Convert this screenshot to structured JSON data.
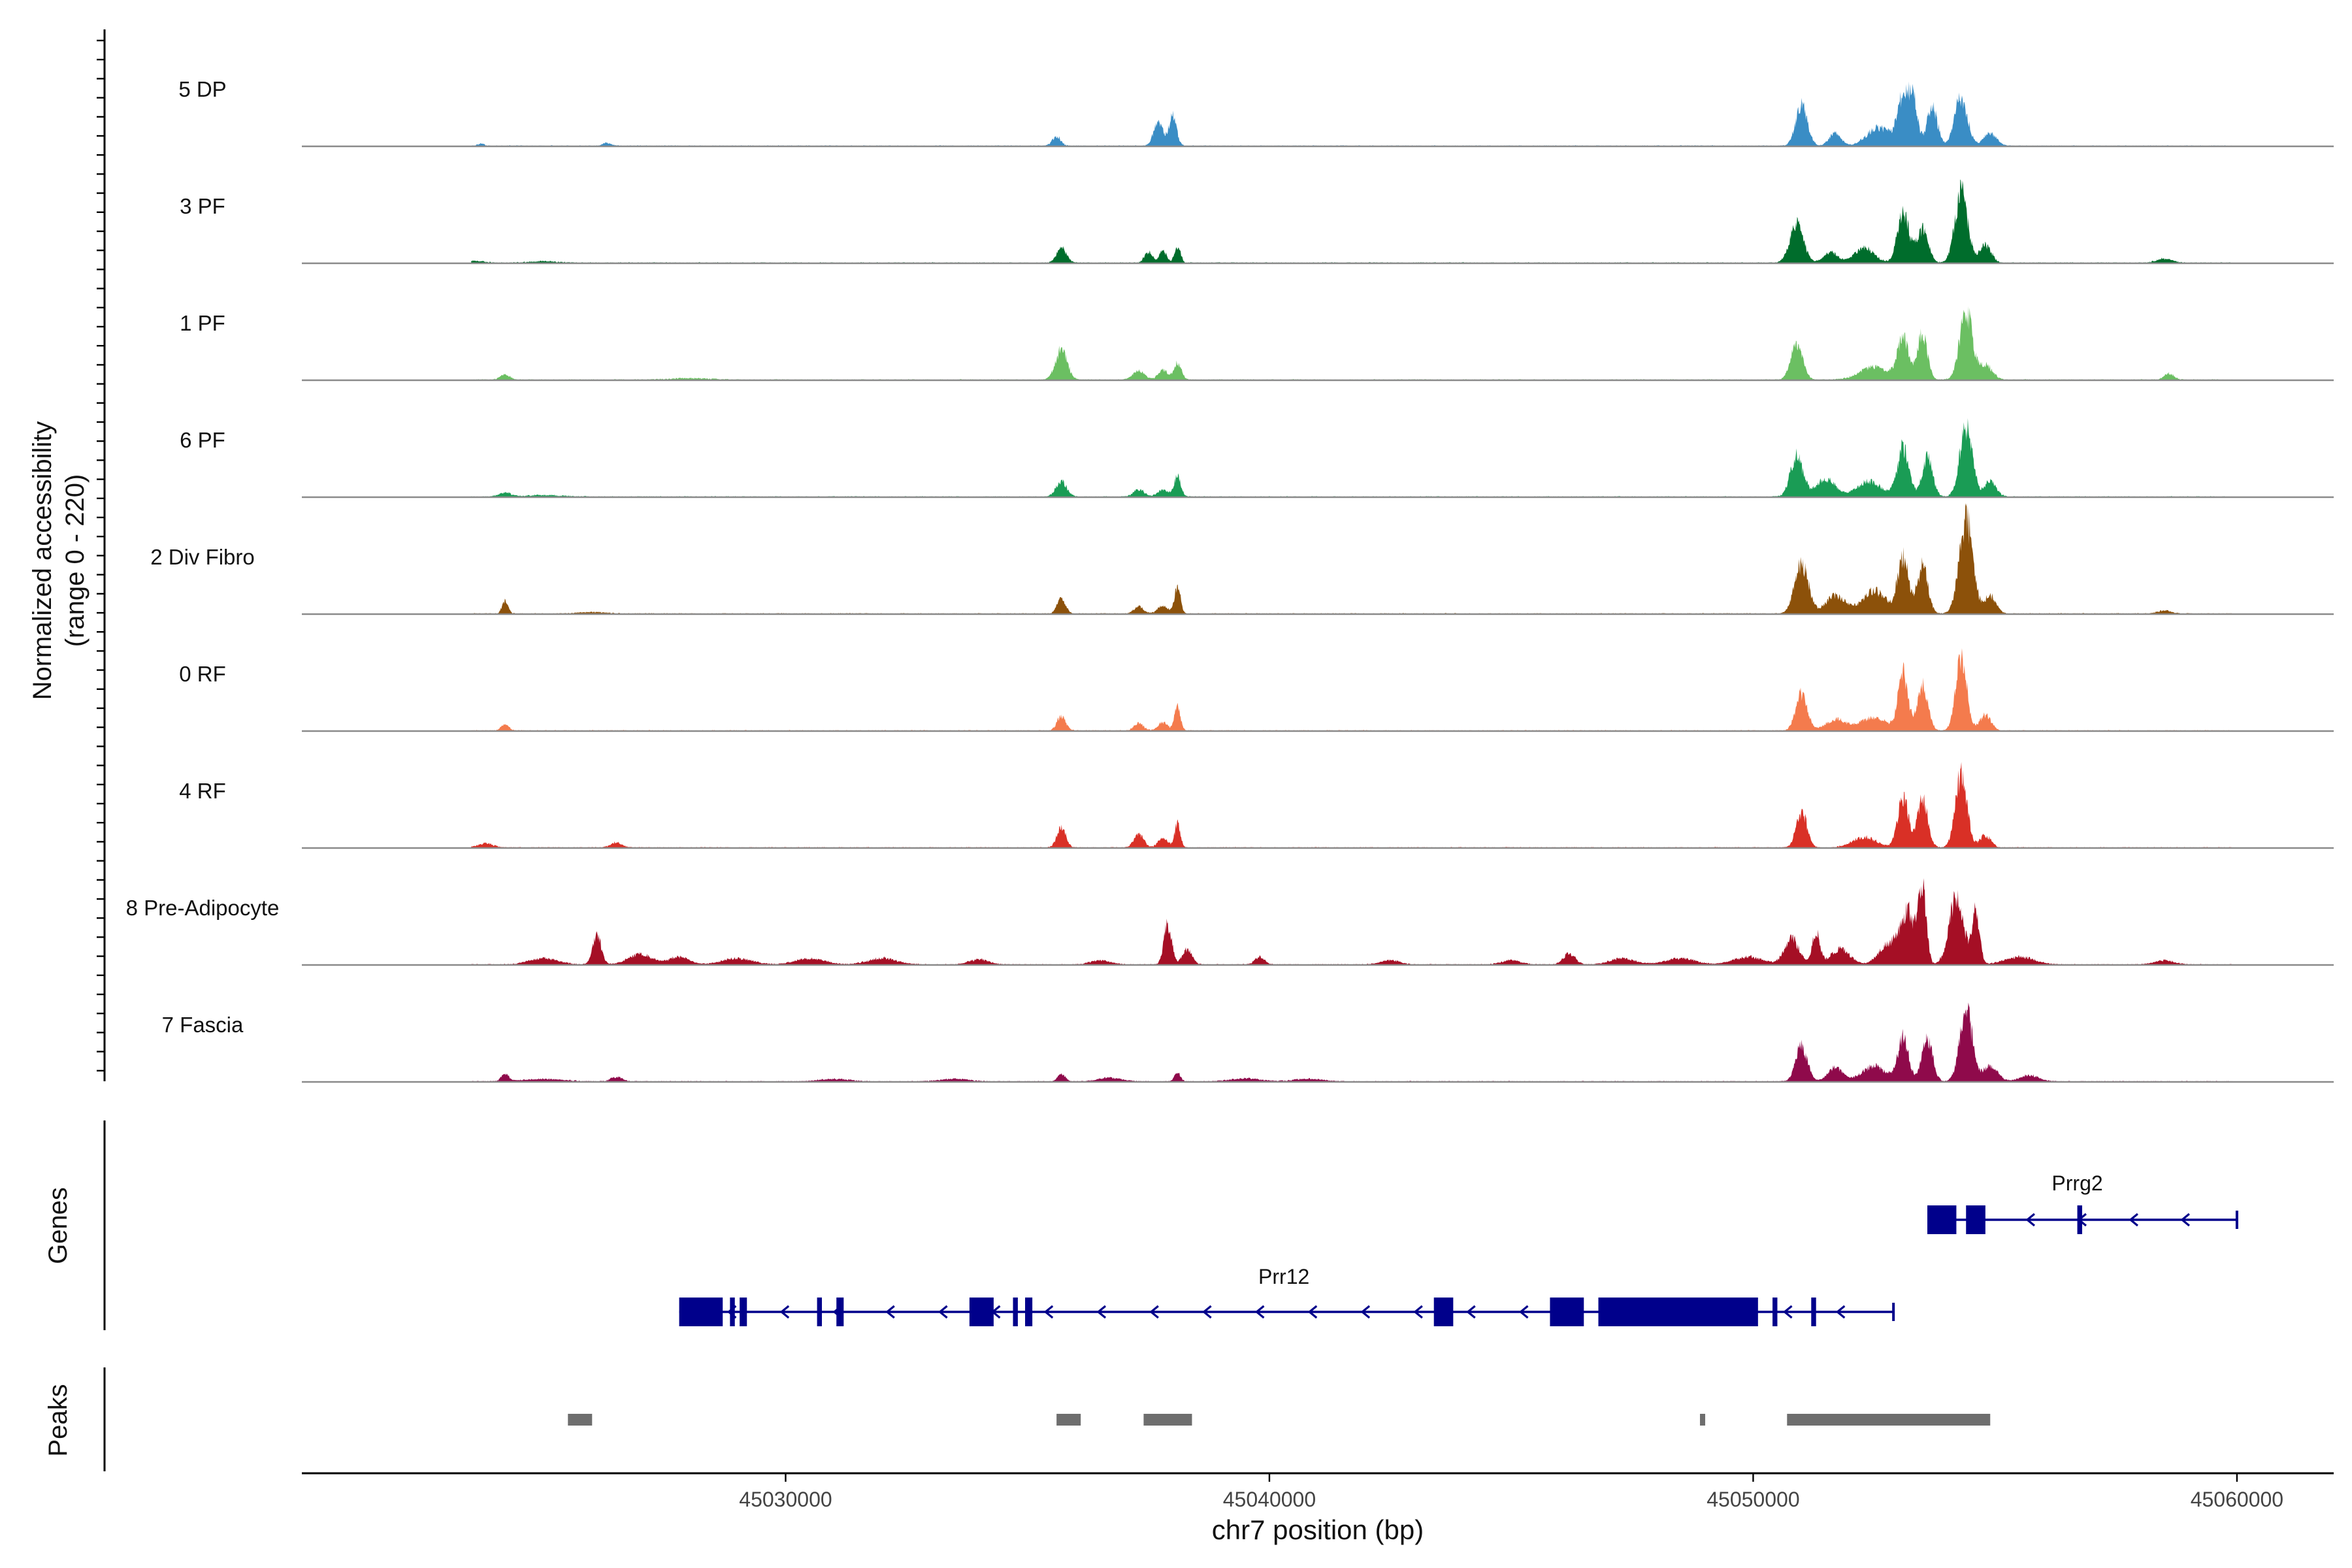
{
  "chart_data": {
    "type": "area",
    "title": "",
    "ylabel_line1": "Normalized accessibility",
    "ylabel_line2": "(range 0 - 220)",
    "xlabel": "chr7 position (bp)",
    "xlim": [
      45020000,
      45062000
    ],
    "ylim": [
      0,
      220
    ],
    "x_ticks": [
      45030000,
      45040000,
      45050000,
      45060000
    ],
    "x_tick_labels": [
      "45030000",
      "45040000",
      "45050000",
      "45060000"
    ],
    "genes_label": "Genes",
    "peaks_label": "Peaks",
    "tracks": [
      {
        "name": "5 DP",
        "color": "#3a8dc5",
        "peaks": [
          [
            45023700,
            5,
            60
          ],
          [
            45026300,
            6,
            90
          ],
          [
            45035600,
            18,
            90
          ],
          [
            45037700,
            50,
            90
          ],
          [
            45038000,
            58,
            80
          ],
          [
            45051000,
            80,
            120
          ],
          [
            45051700,
            25,
            120
          ],
          [
            45052500,
            20,
            200
          ],
          [
            45053100,
            80,
            110
          ],
          [
            45053300,
            88,
            90
          ],
          [
            45053700,
            75,
            110
          ],
          [
            45054300,
            95,
            130
          ],
          [
            45054900,
            25,
            130
          ],
          [
            45052800,
            22,
            300
          ]
        ]
      },
      {
        "name": "3 PF",
        "color": "#006d2c",
        "peaks": [
          [
            45023500,
            4,
            250
          ],
          [
            45025000,
            3,
            300
          ],
          [
            45035700,
            30,
            100
          ],
          [
            45037500,
            22,
            80
          ],
          [
            45037800,
            25,
            70
          ],
          [
            45038100,
            34,
            60
          ],
          [
            45050900,
            75,
            140
          ],
          [
            45051600,
            20,
            150
          ],
          [
            45052300,
            30,
            200
          ],
          [
            45053100,
            95,
            120
          ],
          [
            45053500,
            65,
            120
          ],
          [
            45054300,
            140,
            130
          ],
          [
            45054800,
            35,
            120
          ],
          [
            45058500,
            8,
            160
          ]
        ]
      },
      {
        "name": "1 PF",
        "color": "#6bbf62",
        "peaks": [
          [
            45024200,
            10,
            100
          ],
          [
            45028000,
            3,
            400
          ],
          [
            45035700,
            60,
            120
          ],
          [
            45037300,
            18,
            120
          ],
          [
            45037800,
            18,
            100
          ],
          [
            45038100,
            32,
            80
          ],
          [
            45050900,
            72,
            120
          ],
          [
            45052500,
            25,
            300
          ],
          [
            45053100,
            80,
            120
          ],
          [
            45053500,
            90,
            100
          ],
          [
            45054400,
            135,
            130
          ],
          [
            45054800,
            30,
            140
          ],
          [
            45058600,
            12,
            100
          ]
        ]
      },
      {
        "name": "6 PF",
        "color": "#1a9c55",
        "peaks": [
          [
            45024200,
            8,
            120
          ],
          [
            45025000,
            3,
            400
          ],
          [
            45035700,
            30,
            110
          ],
          [
            45037300,
            14,
            110
          ],
          [
            45037800,
            14,
            110
          ],
          [
            45038100,
            40,
            70
          ],
          [
            45050900,
            80,
            130
          ],
          [
            45051500,
            35,
            200
          ],
          [
            45052400,
            30,
            250
          ],
          [
            45053100,
            95,
            120
          ],
          [
            45053600,
            75,
            110
          ],
          [
            45054400,
            135,
            130
          ],
          [
            45054900,
            30,
            120
          ]
        ]
      },
      {
        "name": "2 Div Fibro",
        "color": "#8c510a",
        "peaks": [
          [
            45024200,
            26,
            60
          ],
          [
            45026000,
            3,
            300
          ],
          [
            45035700,
            28,
            90
          ],
          [
            45037300,
            14,
            100
          ],
          [
            45037800,
            16,
            100
          ],
          [
            45038100,
            55,
            60
          ],
          [
            45051000,
            100,
            140
          ],
          [
            45051700,
            35,
            200
          ],
          [
            45052500,
            45,
            250
          ],
          [
            45053100,
            110,
            110
          ],
          [
            45053500,
            95,
            110
          ],
          [
            45054400,
            190,
            140
          ],
          [
            45054900,
            35,
            120
          ],
          [
            45058500,
            6,
            150
          ]
        ]
      },
      {
        "name": "0 RF",
        "color": "#f47b4d",
        "peaks": [
          [
            45024200,
            12,
            80
          ],
          [
            45035700,
            28,
            90
          ],
          [
            45037300,
            14,
            100
          ],
          [
            45037800,
            16,
            100
          ],
          [
            45038100,
            48,
            60
          ],
          [
            45051000,
            72,
            120
          ],
          [
            45051700,
            22,
            200
          ],
          [
            45052500,
            25,
            300
          ],
          [
            45053100,
            110,
            100
          ],
          [
            45053500,
            90,
            110
          ],
          [
            45054300,
            150,
            110
          ],
          [
            45054800,
            30,
            120
          ]
        ]
      },
      {
        "name": "4 RF",
        "color": "#d93026",
        "peaks": [
          [
            45023800,
            8,
            150
          ],
          [
            45026500,
            10,
            120
          ],
          [
            45035700,
            40,
            90
          ],
          [
            45037300,
            26,
            100
          ],
          [
            45037800,
            20,
            100
          ],
          [
            45038100,
            45,
            60
          ],
          [
            45051000,
            70,
            110
          ],
          [
            45052300,
            20,
            250
          ],
          [
            45053100,
            100,
            110
          ],
          [
            45053500,
            95,
            110
          ],
          [
            45054300,
            140,
            120
          ],
          [
            45054800,
            25,
            110
          ]
        ]
      },
      {
        "name": "8 Pre-Adipocyte",
        "color": "#a50f25",
        "peaks": [
          [
            45025000,
            12,
            300
          ],
          [
            45026100,
            55,
            90
          ],
          [
            45027000,
            20,
            250
          ],
          [
            45027800,
            15,
            200
          ],
          [
            45029000,
            12,
            300
          ],
          [
            45030500,
            12,
            300
          ],
          [
            45032000,
            12,
            300
          ],
          [
            45034000,
            10,
            200
          ],
          [
            45036500,
            8,
            200
          ],
          [
            45037900,
            80,
            80
          ],
          [
            45038300,
            30,
            100
          ],
          [
            45039800,
            15,
            100
          ],
          [
            45042500,
            8,
            200
          ],
          [
            45045000,
            8,
            200
          ],
          [
            45046200,
            22,
            120
          ],
          [
            45047300,
            12,
            250
          ],
          [
            45048500,
            12,
            300
          ],
          [
            45049900,
            15,
            300
          ],
          [
            45050800,
            50,
            150
          ],
          [
            45051300,
            65,
            80
          ],
          [
            45051800,
            30,
            200
          ],
          [
            45052800,
            40,
            200
          ],
          [
            45053200,
            100,
            150
          ],
          [
            45053500,
            150,
            80
          ],
          [
            45054200,
            130,
            150
          ],
          [
            45054600,
            100,
            80
          ],
          [
            45055500,
            15,
            300
          ],
          [
            45058500,
            8,
            200
          ]
        ]
      },
      {
        "name": "7 Fascia",
        "color": "#8f0a4b",
        "peaks": [
          [
            45024200,
            14,
            80
          ],
          [
            45025000,
            5,
            400
          ],
          [
            45026500,
            9,
            120
          ],
          [
            45031000,
            5,
            300
          ],
          [
            45033500,
            5,
            300
          ],
          [
            45035700,
            14,
            80
          ],
          [
            45036700,
            7,
            250
          ],
          [
            45038100,
            18,
            60
          ],
          [
            45039500,
            6,
            300
          ],
          [
            45040800,
            5,
            300
          ],
          [
            45051000,
            70,
            120
          ],
          [
            45051700,
            28,
            150
          ],
          [
            45052500,
            30,
            250
          ],
          [
            45053100,
            85,
            110
          ],
          [
            45053600,
            85,
            110
          ],
          [
            45054400,
            140,
            130
          ],
          [
            45054900,
            30,
            150
          ],
          [
            45055700,
            12,
            200
          ]
        ]
      }
    ],
    "genes": [
      {
        "name": "Prrg2",
        "strand": "-",
        "start": 45053600,
        "end": 45060000,
        "exons": [
          [
            45053600,
            45054200
          ],
          [
            45054400,
            45054800
          ],
          [
            45056700,
            45056800
          ]
        ]
      },
      {
        "name": "Prr12",
        "strand": "-",
        "start": 45027800,
        "end": 45052900,
        "exons": [
          [
            45027800,
            45028700
          ],
          [
            45028850,
            45028950
          ],
          [
            45029050,
            45029200
          ],
          [
            45030650,
            45030750
          ],
          [
            45031050,
            45031200
          ],
          [
            45033800,
            45034300
          ],
          [
            45034700,
            45034800
          ],
          [
            45034950,
            45035100
          ],
          [
            45043400,
            45043800
          ],
          [
            45045800,
            45046500
          ],
          [
            45046800,
            45050100
          ],
          [
            45050400,
            45050500
          ],
          [
            45051200,
            45051300
          ]
        ]
      }
    ],
    "peaks": [
      [
        45025500,
        45026000
      ],
      [
        45035600,
        45036100
      ],
      [
        45037400,
        45038400
      ],
      [
        45048900,
        45049000
      ],
      [
        45050700,
        45054900
      ]
    ]
  }
}
